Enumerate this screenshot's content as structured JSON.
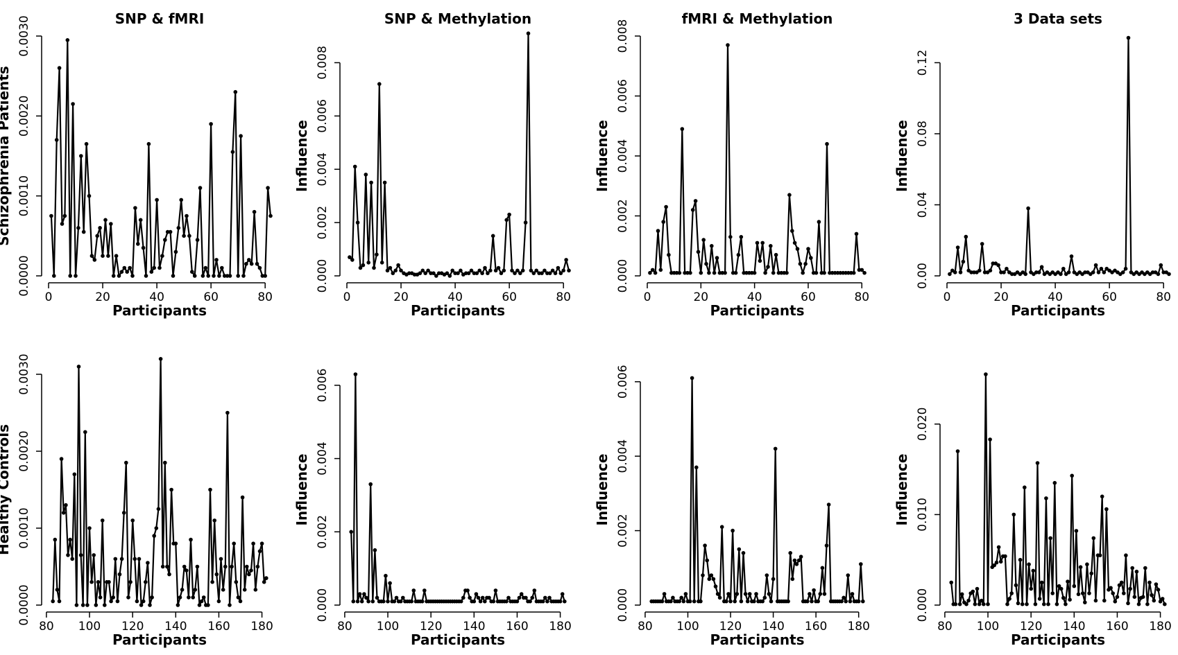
{
  "chart_data": [
    {
      "id": "p1",
      "type": "line",
      "title": "SNP & fMRI",
      "xlabel": "Participants",
      "ylabel": "Schizophrenia Patients",
      "xlim": [
        0,
        82
      ],
      "ylim": [
        0,
        0.003
      ],
      "xticks": [
        0,
        20,
        40,
        60,
        80
      ],
      "xtick_labels": [
        "0",
        "20",
        "40",
        "60",
        "80"
      ],
      "yticks": [
        0,
        0.001,
        0.002,
        0.003
      ],
      "ytick_labels": [
        "0.0000",
        "0.0010",
        "0.0020",
        "0.0030"
      ],
      "x_start": 1,
      "values": [
        0.00075,
        0.0,
        0.0017,
        0.0026,
        0.00065,
        0.00075,
        0.00295,
        0.0,
        0.00215,
        0.0,
        0.0006,
        0.0015,
        0.00055,
        0.00165,
        0.001,
        0.00025,
        0.0002,
        0.0005,
        0.0006,
        0.00025,
        0.0007,
        0.00025,
        0.00065,
        0.0,
        0.00025,
        0.0,
        5e-05,
        0.0001,
        5e-05,
        0.0001,
        0.0,
        0.00085,
        0.0004,
        0.0007,
        0.00035,
        0.0,
        0.00165,
        5e-05,
        0.0001,
        0.00095,
        0.0001,
        0.00025,
        0.00045,
        0.00055,
        0.00055,
        0.0,
        0.0003,
        0.0006,
        0.00095,
        0.0005,
        0.00075,
        0.0005,
        5e-05,
        0.0,
        0.00045,
        0.0011,
        0.0,
        0.0001,
        0.0,
        0.0019,
        0.0,
        0.0002,
        0.0,
        0.0001,
        0.0,
        0.0,
        0.0,
        0.00155,
        0.0023,
        0.0,
        0.00175,
        0.0,
        0.00015,
        0.0002,
        0.00015,
        0.0008,
        0.00015,
        0.0001,
        0.0,
        0.0,
        0.0011,
        0.00075
      ]
    },
    {
      "id": "p2",
      "type": "line",
      "title": "SNP & Methylation",
      "xlabel": "Participants",
      "ylabel": "Influence",
      "xlim": [
        0,
        82
      ],
      "ylim": [
        0,
        0.009
      ],
      "xticks": [
        0,
        20,
        40,
        60,
        80
      ],
      "xtick_labels": [
        "0",
        "20",
        "40",
        "60",
        "80"
      ],
      "yticks": [
        0,
        0.002,
        0.004,
        0.006,
        0.008
      ],
      "ytick_labels": [
        "0.000",
        "0.002",
        "0.004",
        "0.006",
        "0.008"
      ],
      "x_start": 1,
      "values": [
        0.0007,
        0.0006,
        0.0041,
        0.002,
        0.0003,
        0.0004,
        0.0038,
        0.0005,
        0.0035,
        0.0003,
        0.0008,
        0.0072,
        0.0005,
        0.0035,
        0.0002,
        0.0003,
        0.0001,
        0.0002,
        0.0004,
        0.0002,
        0.0001,
        5e-05,
        0.0001,
        0.0001,
        5e-05,
        5e-05,
        0.0001,
        0.0002,
        0.0001,
        0.0002,
        0.0001,
        0.0001,
        0.0,
        0.0001,
        0.0001,
        5e-05,
        0.0001,
        0.0,
        0.0002,
        0.0001,
        0.0001,
        0.0002,
        5e-05,
        0.0001,
        0.0001,
        0.0002,
        0.0001,
        0.0001,
        0.0002,
        0.0001,
        0.0003,
        0.0001,
        0.0002,
        0.0015,
        0.0002,
        0.0003,
        0.0001,
        0.0002,
        0.0021,
        0.0023,
        0.0002,
        0.0001,
        0.0002,
        0.0001,
        0.0002,
        0.002,
        0.0091,
        0.0002,
        0.0001,
        0.0002,
        0.0001,
        0.0001,
        0.0002,
        0.0001,
        0.0001,
        0.0002,
        0.0001,
        0.0003,
        0.0001,
        0.0002,
        0.0006,
        0.0002
      ]
    },
    {
      "id": "p3",
      "type": "line",
      "title": "fMRI & Methylation",
      "xlabel": "Participants",
      "ylabel": "Influence",
      "xlim": [
        0,
        82
      ],
      "ylim": [
        0,
        0.008
      ],
      "xticks": [
        0,
        20,
        40,
        60,
        80
      ],
      "xtick_labels": [
        "0",
        "20",
        "40",
        "60",
        "80"
      ],
      "yticks": [
        0,
        0.002,
        0.004,
        0.006,
        0.008
      ],
      "ytick_labels": [
        "0.000",
        "0.002",
        "0.004",
        "0.006",
        "0.008"
      ],
      "x_start": 1,
      "values": [
        0.0001,
        0.0002,
        0.0001,
        0.0015,
        0.0002,
        0.0018,
        0.0023,
        0.0007,
        0.0001,
        0.0001,
        0.0001,
        0.0001,
        0.0049,
        0.0001,
        0.0001,
        0.0001,
        0.0022,
        0.0025,
        0.0008,
        0.0001,
        0.0012,
        0.0004,
        0.0001,
        0.001,
        0.0001,
        0.0006,
        0.0001,
        0.0001,
        0.0001,
        0.0077,
        0.0013,
        0.0001,
        0.0001,
        0.0007,
        0.0013,
        0.0001,
        0.0001,
        0.0001,
        0.0001,
        0.0001,
        0.0011,
        0.0005,
        0.0011,
        0.0001,
        0.0003,
        0.001,
        0.0001,
        0.0007,
        0.0001,
        0.0001,
        0.0001,
        0.0001,
        0.0027,
        0.0015,
        0.0011,
        0.0009,
        0.0004,
        0.0001,
        0.0004,
        0.0009,
        0.0006,
        0.0001,
        0.0001,
        0.0018,
        0.0001,
        0.0001,
        0.0044,
        0.0001,
        0.0001,
        0.0001,
        0.0001,
        0.0001,
        0.0001,
        0.0001,
        0.0001,
        0.0001,
        0.0001,
        0.0014,
        0.0002,
        0.0002,
        0.0001
      ]
    },
    {
      "id": "p4",
      "type": "line",
      "title": "3 Data sets",
      "xlabel": "Participants",
      "ylabel": "Influence",
      "xlim": [
        0,
        82
      ],
      "ylim": [
        0,
        0.135
      ],
      "xticks": [
        0,
        20,
        40,
        60,
        80
      ],
      "xtick_labels": [
        "0",
        "20",
        "40",
        "60",
        "80"
      ],
      "yticks": [
        0,
        0.04,
        0.08,
        0.12
      ],
      "ytick_labels": [
        "0.00",
        "0.04",
        "0.08",
        "0.12"
      ],
      "x_start": 1,
      "values": [
        0.001,
        0.003,
        0.002,
        0.016,
        0.002,
        0.008,
        0.022,
        0.003,
        0.002,
        0.002,
        0.002,
        0.003,
        0.018,
        0.002,
        0.002,
        0.003,
        0.007,
        0.007,
        0.006,
        0.002,
        0.002,
        0.004,
        0.002,
        0.001,
        0.001,
        0.002,
        0.001,
        0.002,
        0.001,
        0.038,
        0.002,
        0.001,
        0.002,
        0.002,
        0.005,
        0.001,
        0.002,
        0.001,
        0.002,
        0.001,
        0.002,
        0.001,
        0.004,
        0.001,
        0.002,
        0.011,
        0.002,
        0.001,
        0.002,
        0.001,
        0.002,
        0.002,
        0.001,
        0.002,
        0.006,
        0.002,
        0.004,
        0.002,
        0.004,
        0.003,
        0.002,
        0.003,
        0.002,
        0.001,
        0.002,
        0.004,
        0.134,
        0.002,
        0.001,
        0.002,
        0.001,
        0.002,
        0.001,
        0.002,
        0.001,
        0.002,
        0.002,
        0.001,
        0.006,
        0.002,
        0.002,
        0.001
      ]
    },
    {
      "id": "p5",
      "type": "line",
      "title": "",
      "xlabel": "Participants",
      "ylabel": "Healthy Controls",
      "xlim": [
        81,
        184
      ],
      "ylim": [
        0,
        0.003
      ],
      "xticks": [
        80,
        100,
        120,
        140,
        160,
        180
      ],
      "xtick_labels": [
        "80",
        "100",
        "120",
        "140",
        "160",
        "180"
      ],
      "yticks": [
        0,
        0.001,
        0.002,
        0.003
      ],
      "ytick_labels": [
        "0.0000",
        "0.0010",
        "0.0020",
        "0.0030"
      ],
      "x_start": 83,
      "values": [
        5e-05,
        0.00085,
        0.0002,
        5e-05,
        0.0019,
        0.0012,
        0.0013,
        0.00065,
        0.00085,
        0.0006,
        0.0017,
        0.0,
        0.0031,
        0.00065,
        0.0,
        0.00225,
        0.0,
        0.001,
        0.0003,
        0.00065,
        0.0,
        0.0003,
        0.0001,
        0.0011,
        0.0,
        0.0003,
        0.0003,
        5e-05,
        0.0001,
        0.0006,
        5e-05,
        0.0004,
        0.0006,
        0.0012,
        0.00185,
        0.0001,
        0.0003,
        0.0011,
        0.0006,
        5e-05,
        0.0006,
        0.0,
        5e-05,
        0.0003,
        0.00055,
        0.0,
        0.0001,
        0.0009,
        0.001,
        0.00125,
        0.0032,
        0.0005,
        0.00185,
        0.0005,
        0.0004,
        0.0015,
        0.0008,
        0.0008,
        0.0,
        0.0001,
        0.0002,
        0.0005,
        0.00045,
        0.0001,
        0.00085,
        0.0001,
        0.0002,
        0.0005,
        0.0,
        5e-05,
        0.0001,
        0.0,
        0.0,
        0.0015,
        0.0003,
        0.0011,
        0.0004,
        5e-05,
        0.0006,
        0.0002,
        0.0005,
        0.0025,
        0.0,
        0.0005,
        0.0008,
        0.0003,
        0.0001,
        5e-05,
        0.0014,
        0.0002,
        0.0005,
        0.0004,
        0.00045,
        0.0008,
        0.0002,
        0.0005,
        0.0007,
        0.0008,
        0.0003,
        0.00035
      ]
    },
    {
      "id": "p6",
      "type": "line",
      "title": "",
      "xlabel": "Participants",
      "ylabel": "Influence",
      "xlim": [
        81,
        184
      ],
      "ylim": [
        0,
        0.0063
      ],
      "xticks": [
        80,
        100,
        120,
        140,
        160,
        180
      ],
      "xtick_labels": [
        "80",
        "100",
        "120",
        "140",
        "160",
        "180"
      ],
      "yticks": [
        0,
        0.002,
        0.004,
        0.006
      ],
      "ytick_labels": [
        "0.000",
        "0.002",
        "0.004",
        "0.006"
      ],
      "x_start": 83,
      "values": [
        0.002,
        0.0001,
        0.0063,
        0.0001,
        0.0003,
        0.0001,
        0.0003,
        0.0002,
        0.0001,
        0.0033,
        0.0001,
        0.0015,
        0.0002,
        0.0001,
        0.0001,
        0.0001,
        0.0008,
        0.0001,
        0.0006,
        0.0001,
        0.0001,
        0.0002,
        0.0001,
        0.0001,
        0.0002,
        0.0001,
        0.0001,
        0.0001,
        0.0001,
        0.0004,
        0.0001,
        0.0001,
        0.0001,
        0.0001,
        0.0004,
        0.0001,
        0.0001,
        0.0001,
        0.0001,
        0.0001,
        0.0001,
        0.0001,
        0.0001,
        0.0001,
        0.0001,
        0.0001,
        0.0001,
        0.0001,
        0.0001,
        0.0001,
        0.0001,
        0.0001,
        0.0002,
        0.0004,
        0.0004,
        0.0002,
        0.0001,
        0.0001,
        0.0003,
        0.0002,
        0.0001,
        0.0002,
        0.0001,
        0.0002,
        0.0002,
        0.0001,
        0.0001,
        0.0004,
        0.0001,
        0.0001,
        0.0001,
        0.0001,
        0.0001,
        0.0002,
        0.0001,
        0.0001,
        0.0001,
        0.0001,
        0.0002,
        0.0003,
        0.0002,
        0.0002,
        0.0001,
        0.0001,
        0.0002,
        0.0004,
        0.0001,
        0.0001,
        0.0001,
        0.0001,
        0.0002,
        0.0001,
        0.0002,
        0.0001,
        0.0001,
        0.0001,
        0.0001,
        0.0001,
        0.0003,
        0.0001
      ]
    },
    {
      "id": "p7",
      "type": "line",
      "title": "",
      "xlabel": "Participants",
      "ylabel": "Influence",
      "xlim": [
        81,
        184
      ],
      "ylim": [
        0,
        0.0062
      ],
      "xticks": [
        80,
        100,
        120,
        140,
        160,
        180
      ],
      "xtick_labels": [
        "80",
        "100",
        "120",
        "140",
        "160",
        "180"
      ],
      "yticks": [
        0,
        0.002,
        0.004,
        0.006
      ],
      "ytick_labels": [
        "0.000",
        "0.002",
        "0.004",
        "0.006"
      ],
      "x_start": 83,
      "values": [
        0.0001,
        0.0001,
        0.0001,
        0.0001,
        0.0001,
        0.0001,
        0.0003,
        0.0001,
        0.0001,
        0.0001,
        0.0002,
        0.0001,
        0.0001,
        0.0001,
        0.0002,
        0.0001,
        0.0003,
        0.0001,
        0.0001,
        0.0061,
        0.0001,
        0.0037,
        0.0001,
        0.0001,
        0.0008,
        0.0016,
        0.0012,
        0.0007,
        0.0008,
        0.0007,
        0.0005,
        0.0003,
        0.0002,
        0.0021,
        0.0001,
        0.0001,
        0.0003,
        0.0001,
        0.002,
        0.0001,
        0.0003,
        0.0015,
        0.0001,
        0.0014,
        0.0003,
        0.0001,
        0.0003,
        0.0001,
        0.0001,
        0.0003,
        0.0001,
        0.0001,
        0.0001,
        0.0002,
        0.0008,
        0.0003,
        0.0001,
        0.0007,
        0.0042,
        0.0001,
        0.0001,
        0.0001,
        0.0001,
        0.0001,
        0.0001,
        0.0014,
        0.0007,
        0.0012,
        0.0011,
        0.0012,
        0.0013,
        0.0001,
        0.0001,
        0.0001,
        0.0003,
        0.0001,
        0.0004,
        0.0001,
        0.0001,
        0.0003,
        0.001,
        0.0003,
        0.0016,
        0.0027,
        0.0001,
        0.0001,
        0.0001,
        0.0001,
        0.0001,
        0.0001,
        0.0002,
        0.0001,
        0.0008,
        0.0001,
        0.0003,
        0.0001,
        0.0001,
        0.0001,
        0.0011,
        0.0001
      ]
    },
    {
      "id": "p8",
      "type": "line",
      "title": "",
      "xlabel": "Participants",
      "ylabel": "Influence",
      "xlim": [
        81,
        184
      ],
      "ylim": [
        0,
        0.0255
      ],
      "xticks": [
        80,
        100,
        120,
        140,
        160,
        180
      ],
      "xtick_labels": [
        "80",
        "100",
        "120",
        "140",
        "160",
        "180"
      ],
      "yticks": [
        0,
        0.01,
        0.02
      ],
      "ytick_labels": [
        "0.000",
        "0.010",
        "0.020"
      ],
      "x_start": 83,
      "values": [
        0.0025,
        0.0001,
        0.0001,
        0.017,
        0.0001,
        0.0012,
        0.0003,
        0.0001,
        0.0005,
        0.0013,
        0.0015,
        0.0001,
        0.0018,
        0.0001,
        0.0005,
        0.0001,
        0.0255,
        0.0001,
        0.0183,
        0.0042,
        0.0044,
        0.0047,
        0.0064,
        0.0048,
        0.0054,
        0.0054,
        0.0001,
        0.0007,
        0.0013,
        0.01,
        0.0022,
        0.0002,
        0.005,
        0.0001,
        0.013,
        0.0001,
        0.0045,
        0.0018,
        0.0038,
        0.0001,
        0.0157,
        0.0007,
        0.0025,
        0.0001,
        0.0118,
        0.0001,
        0.0074,
        0.0013,
        0.0135,
        0.0001,
        0.0021,
        0.0018,
        0.0008,
        0.0001,
        0.0026,
        0.0006,
        0.0143,
        0.0021,
        0.0082,
        0.0012,
        0.0042,
        0.0013,
        0.0003,
        0.0045,
        0.0013,
        0.0035,
        0.0074,
        0.0005,
        0.0055,
        0.0055,
        0.012,
        0.0005,
        0.0106,
        0.0017,
        0.0019,
        0.0013,
        0.0004,
        0.0009,
        0.0022,
        0.0025,
        0.0013,
        0.0055,
        0.0002,
        0.0018,
        0.0041,
        0.0009,
        0.0037,
        0.0001,
        0.0008,
        0.0009,
        0.0041,
        0.0001,
        0.0025,
        0.0011,
        0.0005,
        0.0023,
        0.0017,
        0.0004,
        0.0007,
        0.0001
      ]
    }
  ]
}
